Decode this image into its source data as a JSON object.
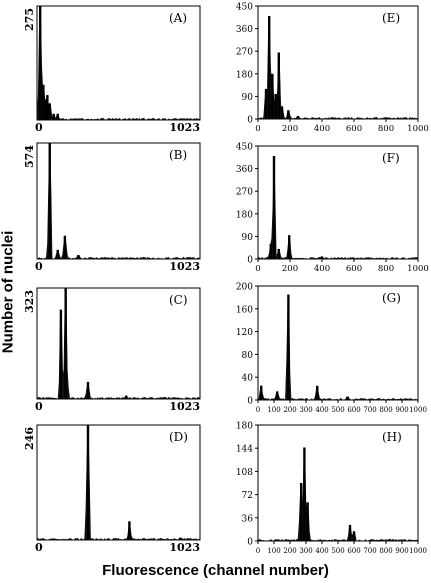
{
  "figure": {
    "ylabel": "Number of nuclei",
    "xlabel": "Fluorescence (channel number)"
  },
  "chart_data": [
    {
      "type": "histogram",
      "panel": "(A)",
      "xlim": [
        0,
        1023
      ],
      "ylim": [
        0,
        275
      ],
      "x_ticks": [
        "0",
        "1023"
      ],
      "y_ticks": [
        "275"
      ],
      "peaks": [
        {
          "x": 20,
          "y": 275
        },
        {
          "x": 40,
          "y": 85
        },
        {
          "x": 55,
          "y": 50
        },
        {
          "x": 65,
          "y": 60
        },
        {
          "x": 80,
          "y": 40
        },
        {
          "x": 105,
          "y": 15
        },
        {
          "x": 130,
          "y": 15
        }
      ]
    },
    {
      "type": "histogram",
      "panel": "(B)",
      "xlim": [
        0,
        1023
      ],
      "ylim": [
        0,
        574
      ],
      "x_ticks": [
        "0",
        "1023"
      ],
      "y_ticks": [
        "574"
      ],
      "peaks": [
        {
          "x": 80,
          "y": 574
        },
        {
          "x": 130,
          "y": 45
        },
        {
          "x": 175,
          "y": 115
        },
        {
          "x": 260,
          "y": 20
        }
      ]
    },
    {
      "type": "histogram",
      "panel": "(C)",
      "xlim": [
        0,
        1023
      ],
      "ylim": [
        0,
        323
      ],
      "x_ticks": [
        "0",
        "1023"
      ],
      "y_ticks": [
        "323"
      ],
      "peaks": [
        {
          "x": 150,
          "y": 260
        },
        {
          "x": 180,
          "y": 323
        },
        {
          "x": 320,
          "y": 50
        },
        {
          "x": 560,
          "y": 10
        },
        {
          "x": 800,
          "y": 5
        }
      ]
    },
    {
      "type": "histogram",
      "panel": "(D)",
      "xlim": [
        0,
        1023
      ],
      "ylim": [
        0,
        246
      ],
      "x_ticks": [
        "0",
        "1023"
      ],
      "y_ticks": [
        "246"
      ],
      "peaks": [
        {
          "x": 320,
          "y": 246
        },
        {
          "x": 580,
          "y": 40
        },
        {
          "x": 900,
          "y": 5
        }
      ]
    },
    {
      "type": "histogram",
      "panel": "(E)",
      "xlim": [
        0,
        1000
      ],
      "ylim": [
        0,
        450
      ],
      "x_ticks": [
        "0",
        "200",
        "400",
        "600",
        "800",
        "1000"
      ],
      "y_ticks": [
        "0",
        "90",
        "180",
        "270",
        "360",
        "450"
      ],
      "peaks": [
        {
          "x": 50,
          "y": 120
        },
        {
          "x": 70,
          "y": 410
        },
        {
          "x": 90,
          "y": 180
        },
        {
          "x": 110,
          "y": 100
        },
        {
          "x": 130,
          "y": 265
        },
        {
          "x": 150,
          "y": 50
        },
        {
          "x": 190,
          "y": 35
        },
        {
          "x": 250,
          "y": 12
        }
      ]
    },
    {
      "type": "histogram",
      "panel": "(F)",
      "xlim": [
        0,
        1000
      ],
      "ylim": [
        0,
        450
      ],
      "x_ticks": [
        "0",
        "200",
        "400",
        "600",
        "800",
        "1000"
      ],
      "y_ticks": [
        "0",
        "90",
        "180",
        "270",
        "360",
        "450"
      ],
      "peaks": [
        {
          "x": 80,
          "y": 60
        },
        {
          "x": 100,
          "y": 410
        },
        {
          "x": 130,
          "y": 40
        },
        {
          "x": 195,
          "y": 95
        },
        {
          "x": 400,
          "y": 10
        }
      ]
    },
    {
      "type": "histogram",
      "panel": "(G)",
      "xlim": [
        0,
        1000
      ],
      "ylim": [
        0,
        200
      ],
      "x_ticks": [
        "0",
        "100",
        "200",
        "300",
        "400",
        "500",
        "600",
        "700",
        "800",
        "900",
        "1000"
      ],
      "y_ticks": [
        "0",
        "40",
        "80",
        "120",
        "160",
        "200"
      ],
      "peaks": [
        {
          "x": 20,
          "y": 25
        },
        {
          "x": 120,
          "y": 15
        },
        {
          "x": 190,
          "y": 185
        },
        {
          "x": 370,
          "y": 25
        },
        {
          "x": 560,
          "y": 6
        }
      ]
    },
    {
      "type": "histogram",
      "panel": "(H)",
      "xlim": [
        0,
        1000
      ],
      "ylim": [
        0,
        180
      ],
      "x_ticks": [
        "0",
        "100",
        "200",
        "300",
        "400",
        "500",
        "600",
        "700",
        "800",
        "900",
        "1000"
      ],
      "y_ticks": [
        "0",
        "36",
        "72",
        "108",
        "144",
        "180"
      ],
      "peaks": [
        {
          "x": 270,
          "y": 90
        },
        {
          "x": 290,
          "y": 145
        },
        {
          "x": 310,
          "y": 60
        },
        {
          "x": 575,
          "y": 25
        },
        {
          "x": 600,
          "y": 15
        }
      ]
    }
  ]
}
